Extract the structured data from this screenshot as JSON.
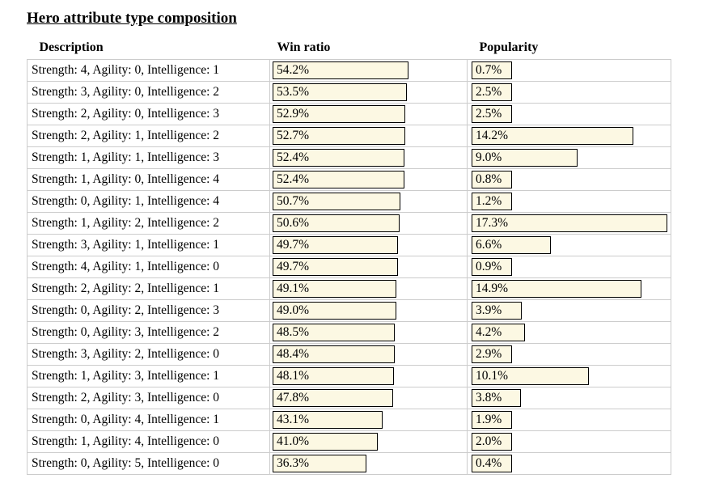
{
  "page_title": "Hero attribute type composition",
  "colors": {
    "background": "#FFFFFF",
    "text": "#000000",
    "bar_fill": "#FCF8E3",
    "bar_border": "#000000",
    "grid_border": "#CCCCCC"
  },
  "table": {
    "headers": {
      "description": "Description",
      "win_ratio": "Win ratio",
      "popularity": "Popularity"
    },
    "rows": [
      {
        "description": "Strength: 4, Agility: 0, Intelligence: 1",
        "win_ratio": "54.2%",
        "popularity": "0.7%",
        "win_value": 54.2,
        "pop_value": 0.7
      },
      {
        "description": "Strength: 3, Agility: 0, Intelligence: 2",
        "win_ratio": "53.5%",
        "popularity": "2.5%",
        "win_value": 53.5,
        "pop_value": 2.5
      },
      {
        "description": "Strength: 2, Agility: 0, Intelligence: 3",
        "win_ratio": "52.9%",
        "popularity": "2.5%",
        "win_value": 52.9,
        "pop_value": 2.5
      },
      {
        "description": "Strength: 2, Agility: 1, Intelligence: 2",
        "win_ratio": "52.7%",
        "popularity": "14.2%",
        "win_value": 52.7,
        "pop_value": 14.2
      },
      {
        "description": "Strength: 1, Agility: 1, Intelligence: 3",
        "win_ratio": "52.4%",
        "popularity": "9.0%",
        "win_value": 52.4,
        "pop_value": 9.0
      },
      {
        "description": "Strength: 1, Agility: 0, Intelligence: 4",
        "win_ratio": "52.4%",
        "popularity": "0.8%",
        "win_value": 52.4,
        "pop_value": 0.8
      },
      {
        "description": "Strength: 0, Agility: 1, Intelligence: 4",
        "win_ratio": "50.7%",
        "popularity": "1.2%",
        "win_value": 50.7,
        "pop_value": 1.2
      },
      {
        "description": "Strength: 1, Agility: 2, Intelligence: 2",
        "win_ratio": "50.6%",
        "popularity": "17.3%",
        "win_value": 50.6,
        "pop_value": 17.3
      },
      {
        "description": "Strength: 3, Agility: 1, Intelligence: 1",
        "win_ratio": "49.7%",
        "popularity": "6.6%",
        "win_value": 49.7,
        "pop_value": 6.6
      },
      {
        "description": "Strength: 4, Agility: 1, Intelligence: 0",
        "win_ratio": "49.7%",
        "popularity": "0.9%",
        "win_value": 49.7,
        "pop_value": 0.9
      },
      {
        "description": "Strength: 2, Agility: 2, Intelligence: 1",
        "win_ratio": "49.1%",
        "popularity": "14.9%",
        "win_value": 49.1,
        "pop_value": 14.9
      },
      {
        "description": "Strength: 0, Agility: 2, Intelligence: 3",
        "win_ratio": "49.0%",
        "popularity": "3.9%",
        "win_value": 49.0,
        "pop_value": 3.9
      },
      {
        "description": "Strength: 0, Agility: 3, Intelligence: 2",
        "win_ratio": "48.5%",
        "popularity": "4.2%",
        "win_value": 48.5,
        "pop_value": 4.2
      },
      {
        "description": "Strength: 3, Agility: 2, Intelligence: 0",
        "win_ratio": "48.4%",
        "popularity": "2.9%",
        "win_value": 48.4,
        "pop_value": 2.9
      },
      {
        "description": "Strength: 1, Agility: 3, Intelligence: 1",
        "win_ratio": "48.1%",
        "popularity": "10.1%",
        "win_value": 48.1,
        "pop_value": 10.1
      },
      {
        "description": "Strength: 2, Agility: 3, Intelligence: 0",
        "win_ratio": "47.8%",
        "popularity": "3.8%",
        "win_value": 47.8,
        "pop_value": 3.8
      },
      {
        "description": "Strength: 0, Agility: 4, Intelligence: 1",
        "win_ratio": "43.1%",
        "popularity": "1.9%",
        "win_value": 43.1,
        "pop_value": 1.9
      },
      {
        "description": "Strength: 1, Agility: 4, Intelligence: 0",
        "win_ratio": "41.0%",
        "popularity": "2.0%",
        "win_value": 41.0,
        "pop_value": 2.0
      },
      {
        "description": "Strength: 0, Agility: 5, Intelligence: 0",
        "win_ratio": "36.3%",
        "popularity": "0.4%",
        "win_value": 36.3,
        "pop_value": 0.4
      }
    ]
  },
  "chart_data": {
    "type": "bar",
    "orientation": "horizontal",
    "title": "Hero attribute type composition",
    "categories": [
      "Strength: 4, Agility: 0, Intelligence: 1",
      "Strength: 3, Agility: 0, Intelligence: 2",
      "Strength: 2, Agility: 0, Intelligence: 3",
      "Strength: 2, Agility: 1, Intelligence: 2",
      "Strength: 1, Agility: 1, Intelligence: 3",
      "Strength: 1, Agility: 0, Intelligence: 4",
      "Strength: 0, Agility: 1, Intelligence: 4",
      "Strength: 1, Agility: 2, Intelligence: 2",
      "Strength: 3, Agility: 1, Intelligence: 1",
      "Strength: 4, Agility: 1, Intelligence: 0",
      "Strength: 2, Agility: 2, Intelligence: 1",
      "Strength: 0, Agility: 2, Intelligence: 3",
      "Strength: 0, Agility: 3, Intelligence: 2",
      "Strength: 3, Agility: 2, Intelligence: 0",
      "Strength: 1, Agility: 3, Intelligence: 1",
      "Strength: 2, Agility: 3, Intelligence: 0",
      "Strength: 0, Agility: 4, Intelligence: 1",
      "Strength: 1, Agility: 4, Intelligence: 0",
      "Strength: 0, Agility: 5, Intelligence: 0"
    ],
    "series": [
      {
        "name": "Win ratio",
        "unit": "%",
        "values": [
          54.2,
          53.5,
          52.9,
          52.7,
          52.4,
          52.4,
          50.7,
          50.6,
          49.7,
          49.7,
          49.1,
          49.0,
          48.5,
          48.4,
          48.1,
          47.8,
          43.1,
          41.0,
          36.3
        ]
      },
      {
        "name": "Popularity",
        "unit": "%",
        "values": [
          0.7,
          2.5,
          2.5,
          14.2,
          9.0,
          0.8,
          1.2,
          17.3,
          6.6,
          0.9,
          14.9,
          3.9,
          4.2,
          2.9,
          10.1,
          3.8,
          1.9,
          2.0,
          0.4
        ]
      }
    ],
    "legend_position": "none",
    "grid": "table-grid",
    "value_labels": "inside-bar-left",
    "sort": "descending by win ratio"
  }
}
